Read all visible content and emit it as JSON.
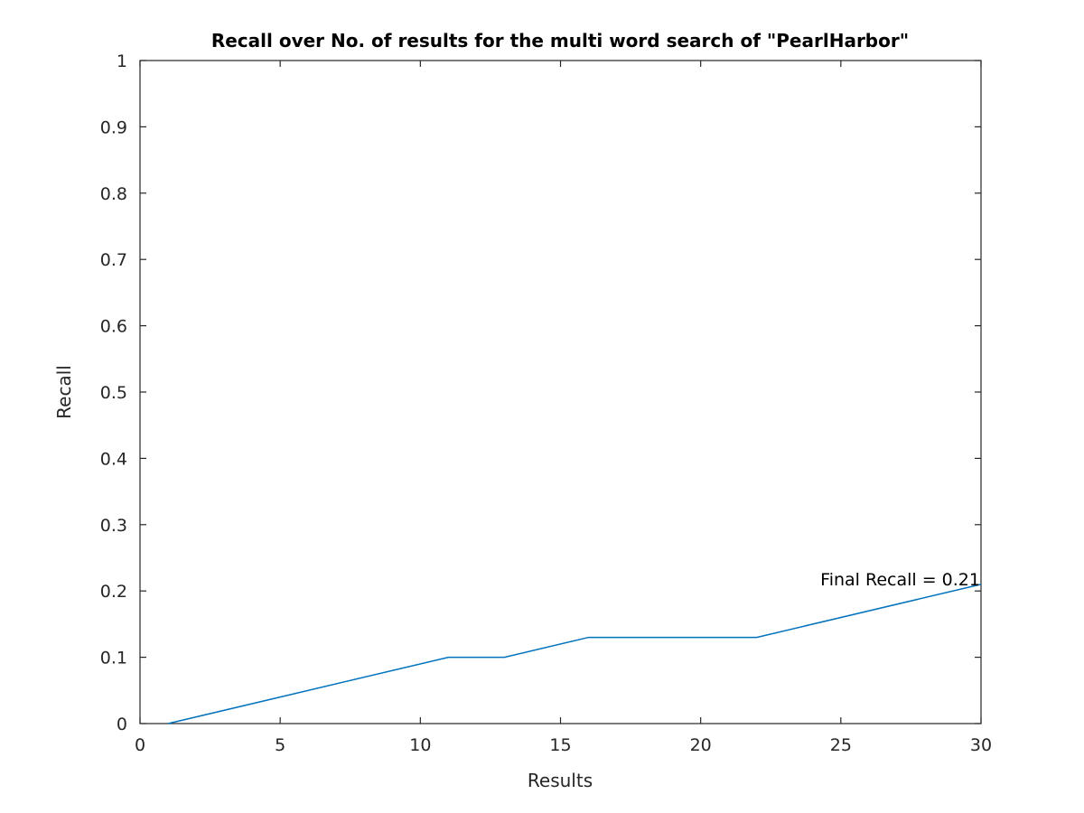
{
  "chart_data": {
    "type": "line",
    "title": "Recall over No. of results for the multi word search of \"PearlHarbor\"",
    "xlabel": "Results",
    "ylabel": "Recall",
    "xlim": [
      0,
      30
    ],
    "ylim": [
      0,
      1
    ],
    "xticks": [
      0,
      5,
      10,
      15,
      20,
      25,
      30
    ],
    "xtick_labels": [
      "0",
      "5",
      "10",
      "15",
      "20",
      "25",
      "30"
    ],
    "yticks": [
      0,
      0.1,
      0.2,
      0.3,
      0.4,
      0.5,
      0.6,
      0.7,
      0.8,
      0.9,
      1
    ],
    "ytick_labels": [
      "0",
      "0.1",
      "0.2",
      "0.3",
      "0.4",
      "0.5",
      "0.6",
      "0.7",
      "0.8",
      "0.9",
      "1"
    ],
    "grid": false,
    "series": [
      {
        "color": "#0072bd",
        "x": [
          1,
          11,
          13,
          16,
          22,
          30
        ],
        "y": [
          0,
          0.1,
          0.1,
          0.13,
          0.13,
          0.21
        ]
      }
    ],
    "annotations": [
      {
        "text": "Final Recall = 0.21",
        "x": 30,
        "y": 0.21
      }
    ]
  }
}
